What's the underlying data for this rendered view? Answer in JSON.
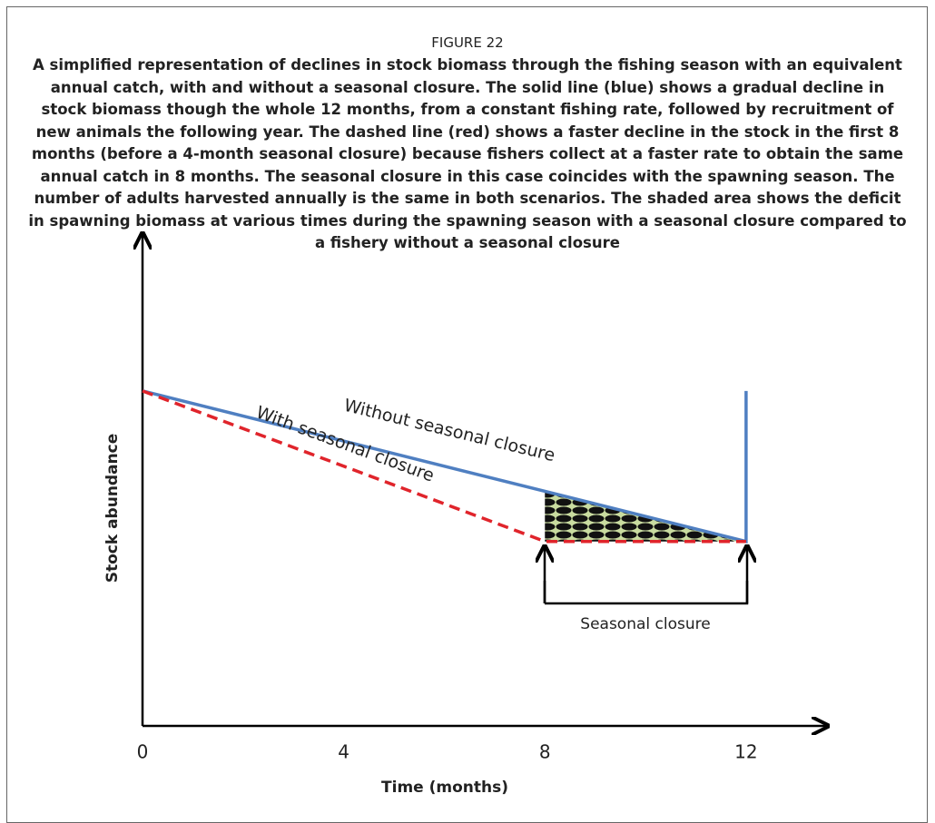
{
  "chart_data": {
    "type": "line",
    "figure_label": "FIGURE 22",
    "title": "A simplified representation of declines in stock biomass through the fishing season with an equivalent annual catch, with and without a seasonal closure. The solid line (blue) shows a gradual decline in stock biomass though the whole 12 months, from a constant fishing rate, followed by recruitment of new animals the following year. The dashed line (red) shows a faster decline in the stock in the first 8 months (before a 4-month seasonal closure) because fishers collect at a faster rate to obtain the same annual catch in 8 months. The seasonal closure in this case coincides with the spawning season. The number of adults harvested annually is the same in both scenarios. The shaded area shows the deficit in spawning biomass at various times during the spawning season with a seasonal closure compared to a fishery without a seasonal closure",
    "x_label": "Time (months)",
    "y_label": "Stock abundance",
    "xlim": [
      0,
      13.5
    ],
    "ylim": [
      0,
      100
    ],
    "xticks": [
      0,
      4,
      8,
      12
    ],
    "series": [
      {
        "name": "Without seasonal closure",
        "color": "#4f7fc1",
        "style": "solid",
        "x": [
          0,
          12,
          12
        ],
        "values": [
          69,
          38,
          69
        ]
      },
      {
        "name": "With seasonal closure",
        "color": "#e0242b",
        "style": "dashed",
        "x": [
          0,
          8,
          12
        ],
        "values": [
          69,
          38,
          38
        ]
      }
    ],
    "annotations": [
      "Seasonal closure"
    ]
  }
}
